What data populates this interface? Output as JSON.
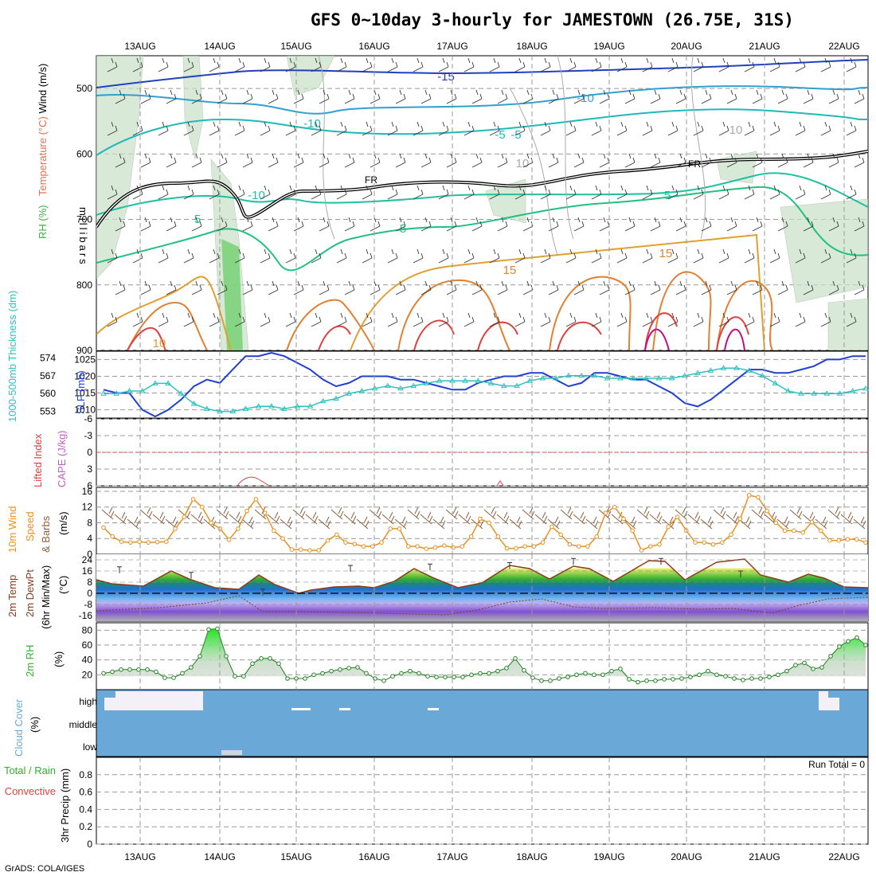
{
  "title": "GFS 0~10day 3-hourly for JAMESTOWN (26.75E, 31S)",
  "footer": "GrADS: COLA/IGES",
  "dates": [
    "13AUG",
    "14AUG",
    "15AUG",
    "16AUG",
    "17AUG",
    "18AUG",
    "19AUG",
    "20AUG",
    "21AUG",
    "22AUG"
  ],
  "colors": {
    "slp": "#2040d0",
    "thickness": "#30c0c0",
    "wind": "#e89020",
    "barb": "#8b6040",
    "temp": "#8b3a1a",
    "dewpt": "#804020",
    "rh": "#30b030",
    "rh_fill": "#c8e0c8",
    "cloud": "#6aa8d8",
    "lifted": "#e04040",
    "cape": "#c060c0"
  },
  "chart_data": [
    {
      "id": "upper_air",
      "type": "contour",
      "ylabel_parts": [
        "RH (%)",
        "Temperature (°C)",
        "Wind (m/s)"
      ],
      "yunit": "millibars",
      "yticks": [
        500,
        600,
        700,
        800,
        900
      ],
      "ylim": [
        450,
        900
      ],
      "temp_labels": [
        "-15",
        "-10",
        "-10",
        "-5",
        "-5",
        "5",
        "5",
        "5",
        "15",
        "15",
        "10",
        "-10",
        "10",
        "10"
      ],
      "freezing_label": "FR"
    },
    {
      "id": "slp_thickness",
      "type": "line",
      "ylabel": "SLP (mb)",
      "ylabel2": "1000-500mb Thickness (dm)",
      "yticks_slp": [
        1010,
        1015,
        1020,
        1025
      ],
      "yticks_thk": [
        553,
        560,
        567,
        574
      ],
      "slp": [
        1016,
        1015,
        1015,
        1010,
        1008,
        1010,
        1013,
        1017,
        1019,
        1018,
        1022,
        1026,
        1026,
        1027,
        1026,
        1024,
        1022,
        1019,
        1017,
        1018,
        1020,
        1020,
        1020,
        1019,
        1019,
        1018,
        1017,
        1016,
        1016,
        1018,
        1019,
        1020,
        1020,
        1021,
        1021,
        1019,
        1017,
        1018,
        1021,
        1021,
        1020,
        1019,
        1019,
        1017,
        1015,
        1012,
        1011,
        1013,
        1016,
        1019,
        1022,
        1022,
        1021,
        1021,
        1022,
        1023,
        1025,
        1025,
        1026,
        1026
      ],
      "thickness": [
        560,
        560,
        561,
        561,
        564,
        564,
        560,
        556,
        554,
        553,
        553,
        554,
        555,
        555,
        554,
        555,
        555,
        557,
        558,
        560,
        561,
        562,
        563,
        562,
        563,
        564,
        565,
        565,
        565,
        565,
        564,
        563,
        563,
        565,
        566,
        566,
        567,
        567,
        567,
        566,
        566,
        566,
        566,
        566,
        566,
        567,
        568,
        569,
        570,
        570,
        569,
        567,
        564,
        561,
        560,
        560,
        560,
        560,
        561,
        562
      ]
    },
    {
      "id": "stability",
      "type": "line",
      "ylabel": "Lifted Index",
      "ylabel2": "CAPE (J/kg)",
      "yticks": [
        -6,
        -3,
        0,
        3,
        6
      ],
      "ylim": [
        -6,
        6
      ]
    },
    {
      "id": "wind10m",
      "type": "line",
      "ylabel_parts": [
        "10m Wind",
        "Speed",
        "& Barbs"
      ],
      "yunit": "(m/s)",
      "yticks": [
        0,
        4,
        8,
        12,
        16
      ],
      "ylim": [
        0,
        16
      ],
      "values": [
        6.8,
        4.5,
        3.2,
        3,
        3.2,
        3,
        3.1,
        3.2,
        6.5,
        9.5,
        14,
        12,
        8,
        6.5,
        3.7,
        6.5,
        11,
        14,
        10.5,
        6,
        4,
        1.2,
        1.2,
        1,
        1,
        3.5,
        5,
        3,
        2.6,
        2,
        2,
        3,
        6.5,
        6.5,
        2,
        2,
        1.4,
        1.7,
        2.2,
        1.7,
        2,
        4.5,
        9,
        8,
        4.5,
        1.5,
        1.5,
        2,
        2,
        3,
        7,
        5,
        2.5,
        2,
        2,
        4.5,
        10.5,
        12,
        9,
        6,
        1,
        2,
        2.5,
        7,
        9.5,
        6,
        3,
        3,
        2.5,
        3,
        5,
        9,
        15,
        14.5,
        11,
        8,
        6,
        6,
        5.5,
        8.2,
        6,
        3.5,
        3.5,
        3.8,
        3.8,
        3
      ]
    },
    {
      "id": "temp2m",
      "type": "area",
      "ylabel_parts": [
        "2m Temp",
        "2m DewPt",
        "(6hr Min/Max)"
      ],
      "yunit": "(°C)",
      "yticks": [
        -16,
        -8,
        0,
        8,
        16,
        24
      ],
      "ylim": [
        -20,
        28
      ],
      "max_temps": [
        19,
        15,
        3,
        20,
        21,
        22,
        25,
        25,
        16
      ],
      "min_temps": [
        8,
        1,
        2,
        7,
        6,
        8,
        7,
        7,
        3
      ]
    },
    {
      "id": "rh2m",
      "type": "area",
      "ylabel": "2m RH",
      "yunit": "(%)",
      "yticks": [
        20,
        40,
        60,
        80
      ],
      "ylim": [
        0,
        90
      ],
      "values": [
        22,
        24,
        27,
        27,
        27,
        27,
        24,
        16,
        16,
        22,
        30,
        45,
        81,
        82,
        45,
        18,
        18,
        35,
        42,
        42,
        35,
        15,
        15,
        15,
        20,
        22,
        25,
        27,
        29,
        30,
        22,
        15,
        12,
        18,
        22,
        25,
        22,
        18,
        17,
        17,
        17,
        17,
        20,
        22,
        22,
        25,
        29,
        42,
        26,
        16,
        12,
        12,
        15,
        17,
        20,
        22,
        20,
        20,
        25,
        28,
        14,
        10,
        12,
        12,
        14,
        14,
        15,
        17,
        20,
        25,
        20,
        18,
        15,
        13,
        15,
        15,
        17,
        20,
        25,
        33,
        36,
        28,
        30,
        45,
        58,
        65,
        70,
        60
      ]
    },
    {
      "id": "cloud",
      "type": "heatmap",
      "ylabel": "Cloud Cover",
      "yunit": "(%)",
      "levels": [
        "high",
        "middle",
        "low"
      ]
    },
    {
      "id": "precip",
      "type": "bar",
      "ylabel_parts": [
        "Total / Rain",
        "Convective"
      ],
      "ylabel2": "3hr Precip (mm)",
      "yticks": [
        0,
        0.2,
        0.4,
        0.6,
        0.8
      ],
      "ylim": [
        0,
        1
      ],
      "run_total": "Run Total = 0"
    }
  ]
}
